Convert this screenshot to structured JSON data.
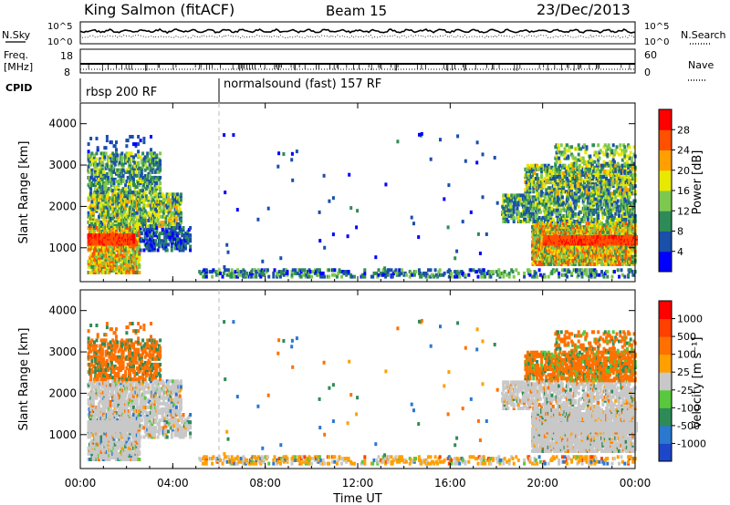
{
  "header": {
    "station": "King Salmon (fitACF)",
    "beam": "Beam 15",
    "date": "23/Dec/2013"
  },
  "noise_panel": {
    "left_label": "N.Sky",
    "right_label": "N.Search",
    "ticks": [
      "10^5",
      "10^0"
    ]
  },
  "freq_panel": {
    "left_label": "Freq.",
    "left_unit": "[MHz]",
    "left_ticks": [
      "18",
      "8"
    ],
    "right_label": "Nave",
    "right_ticks": [
      "60",
      "0"
    ]
  },
  "cpid_panel": {
    "label": "CPID",
    "modes": [
      "rbsp 200 RF",
      "normalsound (fast) 157 RF"
    ],
    "mode_change_hour": 6
  },
  "chart_data": [
    {
      "type": "heatmap",
      "title": "Power",
      "xlabel": "",
      "ylabel": "Slant Range [km]",
      "xlim": [
        0,
        24
      ],
      "ylim": [
        180,
        4500
      ],
      "y_ticks": [
        "1000",
        "2000",
        "3000",
        "4000"
      ],
      "colorbar": {
        "label": "Power [dB]",
        "ticks": [
          "4",
          "8",
          "12",
          "16",
          "20",
          "24",
          "28"
        ],
        "colors": [
          "#0000ff",
          "#1a4faa",
          "#2e8b57",
          "#7ec850",
          "#e8e800",
          "#ffa000",
          "#ff5000",
          "#ff0000"
        ]
      },
      "regions": [
        {
          "name": "morning E/F echoes",
          "time": [
            0.3,
            4.7
          ],
          "range_km": [
            400,
            3700
          ]
        },
        {
          "name": "ground scatter",
          "time": [
            6.0,
            24.0
          ],
          "range_km": [
            300,
            450
          ]
        },
        {
          "name": "evening F echoes",
          "time": [
            18.0,
            24.0
          ],
          "range_km": [
            600,
            3500
          ]
        }
      ]
    },
    {
      "type": "heatmap",
      "title": "Velocity",
      "xlabel": "Time UT",
      "ylabel": "Slant Range [km]",
      "xlim": [
        0,
        24
      ],
      "ylim": [
        180,
        4500
      ],
      "x_ticks": [
        "00:00",
        "04:00",
        "08:00",
        "12:00",
        "16:00",
        "20:00",
        "00:00"
      ],
      "y_ticks": [
        "1000",
        "2000",
        "3000",
        "4000"
      ],
      "colorbar": {
        "label": "Velocity [m s⁻¹]",
        "ticks": [
          "1000",
          "500",
          "100",
          "25",
          "-25",
          "-100",
          "-500",
          "-1000"
        ],
        "colors": [
          "#1e46c8",
          "#2a78d0",
          "#2e8b57",
          "#58c83c",
          "#c8c8c8",
          "#ffa000",
          "#ff7000",
          "#ff4000",
          "#ff0000"
        ]
      }
    }
  ]
}
